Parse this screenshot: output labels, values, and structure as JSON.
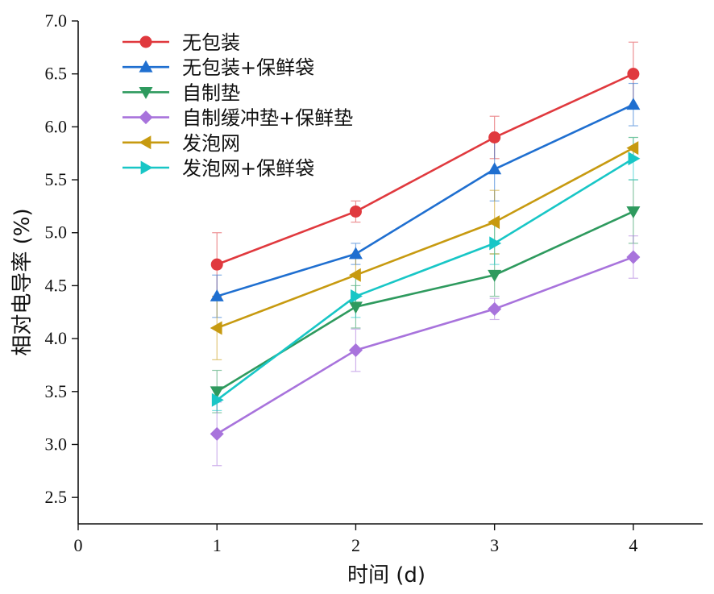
{
  "chart_data": {
    "type": "line",
    "title": "",
    "xlabel": "时间 (d)",
    "ylabel": "相对电导率 (%)",
    "xlim": [
      0,
      4.5
    ],
    "ylim": [
      2.25,
      7.0
    ],
    "x_ticks": [
      "0",
      "1",
      "2",
      "3",
      "4"
    ],
    "y_ticks": [
      "2.5",
      "3.0",
      "3.5",
      "4.0",
      "4.5",
      "5.0",
      "5.5",
      "6.0",
      "6.5",
      "7.0"
    ],
    "grid": false,
    "legend_position": "top-left",
    "x": [
      1,
      2,
      3,
      4
    ],
    "series": [
      {
        "name": "无包装",
        "color": "#e0393e",
        "marker": "circle",
        "values": [
          4.7,
          5.2,
          5.9,
          6.5
        ],
        "errors": [
          0.3,
          0.1,
          0.2,
          0.3
        ]
      },
      {
        "name": "无包装+保鲜袋",
        "color": "#1f6fd0",
        "marker": "triangle-up",
        "values": [
          4.4,
          4.8,
          5.6,
          6.21
        ],
        "errors": [
          0.2,
          0.1,
          0.3,
          0.2
        ]
      },
      {
        "name": "自制垫",
        "color": "#2e9a5e",
        "marker": "triangle-down",
        "values": [
          3.5,
          4.3,
          4.6,
          5.2
        ],
        "errors": [
          0.2,
          0.2,
          0.2,
          0.3
        ]
      },
      {
        "name": "自制缓冲垫+保鲜垫",
        "color": "#a873dc",
        "marker": "diamond",
        "values": [
          3.1,
          3.89,
          4.28,
          4.77
        ],
        "errors": [
          0.3,
          0.2,
          0.1,
          0.2
        ]
      },
      {
        "name": "发泡网",
        "color": "#c79a10",
        "marker": "triangle-left",
        "values": [
          4.1,
          4.6,
          5.1,
          5.8
        ],
        "errors": [
          0.3,
          0.2,
          0.3,
          0.1
        ]
      },
      {
        "name": "发泡网+保鲜袋",
        "color": "#18c6c6",
        "marker": "triangle-right",
        "values": [
          3.42,
          4.4,
          4.9,
          5.7
        ],
        "errors": [
          0.1,
          0.2,
          0.2,
          0.2
        ]
      }
    ]
  }
}
